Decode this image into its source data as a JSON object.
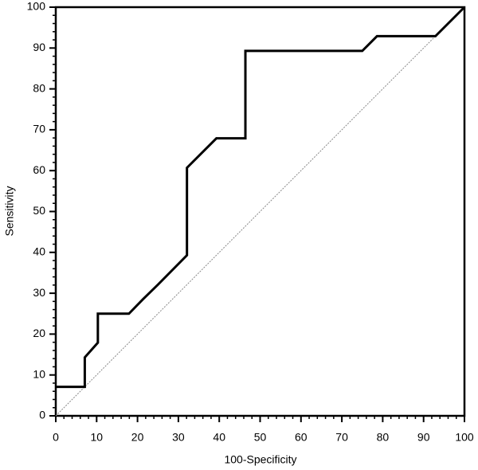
{
  "chart_data": {
    "type": "line",
    "xlabel": "100-Specificity",
    "ylabel": "Sensitivity",
    "series": [
      {
        "color": "#000000",
        "x": [
          0,
          7.1,
          7.1,
          10.3,
          10.3,
          17.9,
          21.4,
          25,
          32.1,
          32.1,
          39.3,
          46.4,
          46.4,
          75,
          78.6,
          92.9,
          100
        ],
        "values": [
          7.1,
          7.1,
          14.3,
          17.9,
          25,
          25,
          28.6,
          32.1,
          39.3,
          60.7,
          67.9,
          67.9,
          89.3,
          89.3,
          92.9,
          92.9,
          100
        ]
      },
      {
        "color": "#888888",
        "x": [
          0,
          100
        ],
        "values": [
          0,
          100
        ]
      }
    ],
    "xlim": [
      0,
      100
    ],
    "ylim": [
      0,
      100
    ],
    "xticks": [
      0,
      10,
      20,
      30,
      40,
      50,
      60,
      70,
      80,
      90,
      100
    ],
    "yticks": [
      0,
      10,
      20,
      30,
      40,
      50,
      60,
      70,
      80,
      90,
      100
    ]
  }
}
